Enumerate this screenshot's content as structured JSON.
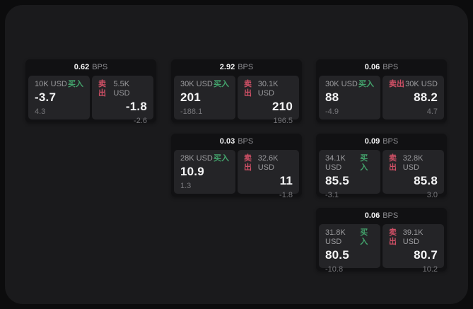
{
  "colors": {
    "buy_green": "#43a36c",
    "sell_red": "#d05066",
    "value_white": "#f4f4f5",
    "label_gray": "#9c9c9f",
    "panel_bg": "#1a1a1c",
    "card_bg": "#111113",
    "subpanel_bg": "#242427"
  },
  "cards": [
    {
      "bps": "0.62",
      "bps_unit": "BPS",
      "buy": {
        "amount": "10K USD",
        "side_label": "买入",
        "price": "-3.7",
        "delta": "4.3"
      },
      "sell": {
        "side_label": "卖出",
        "amount": "5.5K USD",
        "price": "-1.8",
        "delta": "-2.6"
      }
    },
    {
      "bps": "2.92",
      "bps_unit": "BPS",
      "buy": {
        "amount": "30K USD",
        "side_label": "买入",
        "price": "201",
        "delta": "-188.1"
      },
      "sell": {
        "side_label": "卖出",
        "amount": "30.1K USD",
        "price": "210",
        "delta": "196.5"
      }
    },
    {
      "bps": "0.06",
      "bps_unit": "BPS",
      "buy": {
        "amount": "30K USD",
        "side_label": "买入",
        "price": "88",
        "delta": "-4.9"
      },
      "sell": {
        "side_label": "卖出",
        "amount": "30K USD",
        "price": "88.2",
        "delta": "4.7"
      }
    },
    {
      "bps": "0.03",
      "bps_unit": "BPS",
      "buy": {
        "amount": "28K USD",
        "side_label": "买入",
        "price": "10.9",
        "delta": "1.3"
      },
      "sell": {
        "side_label": "卖出",
        "amount": "32.6K USD",
        "price": "11",
        "delta": "-1.8"
      }
    },
    {
      "bps": "0.09",
      "bps_unit": "BPS",
      "buy": {
        "amount": "34.1K USD",
        "side_label": "买入",
        "price": "85.5",
        "delta": "-3.1"
      },
      "sell": {
        "side_label": "卖出",
        "amount": "32.8K USD",
        "price": "85.8",
        "delta": "3.0"
      }
    },
    {
      "bps": "0.06",
      "bps_unit": "BPS",
      "buy": {
        "amount": "31.8K USD",
        "side_label": "买入",
        "price": "80.5",
        "delta": "-10.8"
      },
      "sell": {
        "side_label": "卖出",
        "amount": "39.1K USD",
        "price": "80.7",
        "delta": "10.2"
      }
    }
  ]
}
